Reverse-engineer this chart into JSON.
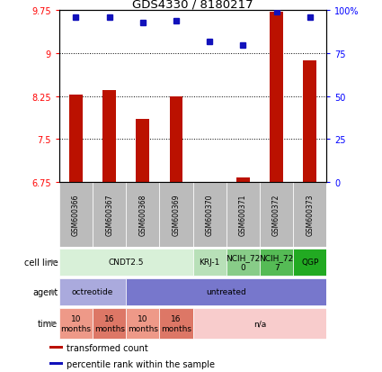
{
  "title": "GDS4330 / 8180217",
  "samples": [
    "GSM600366",
    "GSM600367",
    "GSM600368",
    "GSM600369",
    "GSM600370",
    "GSM600371",
    "GSM600372",
    "GSM600373"
  ],
  "transformed_count": [
    8.28,
    8.35,
    7.85,
    8.25,
    6.68,
    6.82,
    9.72,
    8.88
  ],
  "percentile_rank": [
    96,
    96,
    93,
    94,
    82,
    80,
    99,
    96
  ],
  "ylim_left": [
    6.75,
    9.75
  ],
  "ylim_right": [
    0,
    100
  ],
  "yticks_left": [
    6.75,
    7.5,
    8.25,
    9.0,
    9.75
  ],
  "yticks_right": [
    0,
    25,
    50,
    75,
    100
  ],
  "ytick_labels_left": [
    "6.75",
    "7.5",
    "8.25",
    "9",
    "9.75"
  ],
  "ytick_labels_right": [
    "0",
    "25",
    "50",
    "75",
    "100%"
  ],
  "bar_color": "#bb1100",
  "dot_color": "#1111bb",
  "sample_label_color": "#bbbbbb",
  "cell_line_rows": [
    {
      "label": "CNDT2.5",
      "cols": [
        0,
        1,
        2,
        3
      ],
      "color": "#d8f0d8"
    },
    {
      "label": "KRJ-1",
      "cols": [
        4
      ],
      "color": "#b8e0b8"
    },
    {
      "label": "NCIH_72\n0",
      "cols": [
        5
      ],
      "color": "#88cc88"
    },
    {
      "label": "NCIH_72\n7",
      "cols": [
        6
      ],
      "color": "#55bb55"
    },
    {
      "label": "QGP",
      "cols": [
        7
      ],
      "color": "#22aa22"
    }
  ],
  "agent_rows": [
    {
      "label": "octreotide",
      "cols": [
        0,
        1
      ],
      "color": "#aaaadd"
    },
    {
      "label": "untreated",
      "cols": [
        2,
        3,
        4,
        5,
        6,
        7
      ],
      "color": "#7777cc"
    }
  ],
  "time_rows": [
    {
      "label": "10\nmonths",
      "cols": [
        0
      ],
      "color": "#ee9988"
    },
    {
      "label": "16\nmonths",
      "cols": [
        1
      ],
      "color": "#dd7766"
    },
    {
      "label": "10\nmonths",
      "cols": [
        2
      ],
      "color": "#ee9988"
    },
    {
      "label": "16\nmonths",
      "cols": [
        3
      ],
      "color": "#dd7766"
    },
    {
      "label": "n/a",
      "cols": [
        4,
        5,
        6,
        7
      ],
      "color": "#f8cccc"
    }
  ],
  "row_labels": [
    "cell line",
    "agent",
    "time"
  ],
  "legend_items": [
    {
      "label": "transformed count",
      "color": "#bb1100"
    },
    {
      "label": "percentile rank within the sample",
      "color": "#1111bb"
    }
  ]
}
